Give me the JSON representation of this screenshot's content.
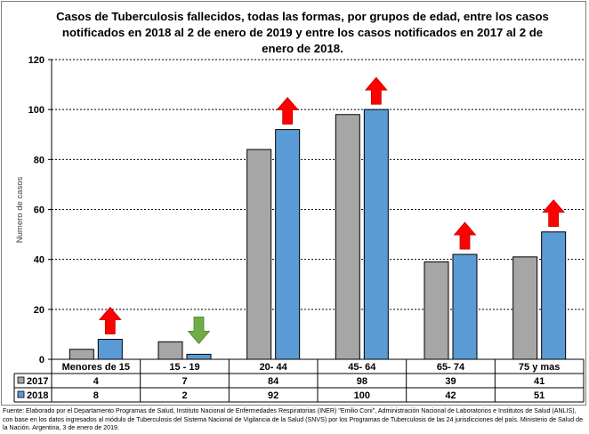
{
  "chart_data": {
    "type": "bar",
    "title": "Casos de Tuberculosis fallecidos, todas las formas, por grupos de edad, entre los casos notificados en 2018 al 2 de enero de 2019 y entre los casos notificados en 2017 al 2 de enero de 2018.",
    "ylabel": "Numero de casos",
    "xlabel": "",
    "ylim": [
      0,
      120
    ],
    "yticks": [
      0,
      20,
      40,
      60,
      80,
      100,
      120
    ],
    "grid": true,
    "legend": "data-table",
    "categories": [
      "Menores de 15",
      "15 - 19",
      "20- 44",
      "45- 64",
      "65- 74",
      "75 y mas"
    ],
    "series": [
      {
        "name": "2017",
        "color": "#a6a6a6",
        "values": [
          4,
          7,
          84,
          98,
          39,
          41
        ]
      },
      {
        "name": "2018",
        "color": "#5b9bd5",
        "values": [
          8,
          2,
          92,
          100,
          42,
          51
        ]
      }
    ],
    "trend_arrows": [
      "up",
      "down",
      "up",
      "up",
      "up",
      "up"
    ],
    "arrow_colors": {
      "up": "#ff0000",
      "down": "#70ad47"
    }
  },
  "footnote": "Fuente: Elaborado por el Departamento Programas de Salud, Instituto Nacional de Enfermedades Respiratorias (INER) \"Emilio Coni\", Administración Nacional de Laboratorios e Institutos de Salud (ANLIS), con base en los datos ingresados al módulo de Tuberculosis del Sistema Nacional de Vigilancia de la Salud (SNVS) por los Programas de Tuberculosis de las 24 jurisdicciones del país. Ministerio de Salud de la Nación. Argentina,  3 de enero de 2019."
}
